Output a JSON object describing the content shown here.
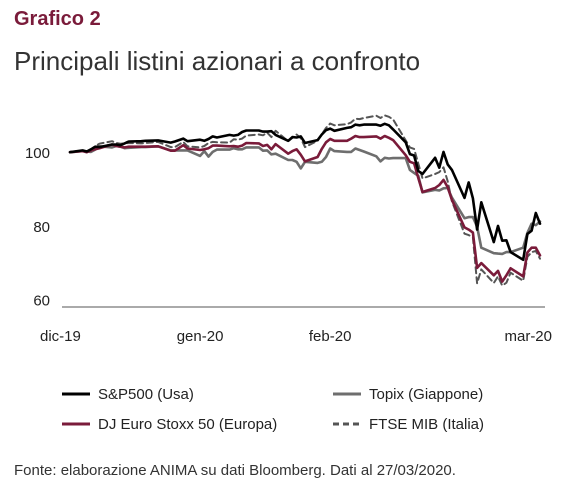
{
  "figure_label": "Grafico 2",
  "source_note": "Fonte: elaborazione ANIMA su dati Bloomberg. Dati al 27/03/2020.",
  "chart_data": {
    "type": "line",
    "title": "Principali listini azionari a confronto",
    "xlabel": "",
    "ylabel": "",
    "x": [
      "2019-12-06",
      "2019-12-09",
      "2019-12-10",
      "2019-12-11",
      "2019-12-12",
      "2019-12-13",
      "2019-12-16",
      "2019-12-17",
      "2019-12-18",
      "2019-12-19",
      "2019-12-20",
      "2019-12-23",
      "2019-12-24",
      "2019-12-27",
      "2019-12-30",
      "2019-12-31",
      "2020-01-02",
      "2020-01-03",
      "2020-01-06",
      "2020-01-07",
      "2020-01-08",
      "2020-01-09",
      "2020-01-10",
      "2020-01-13",
      "2020-01-14",
      "2020-01-15",
      "2020-01-16",
      "2020-01-17",
      "2020-01-20",
      "2020-01-21",
      "2020-01-22",
      "2020-01-23",
      "2020-01-24",
      "2020-01-27",
      "2020-01-28",
      "2020-01-29",
      "2020-01-30",
      "2020-01-31",
      "2020-02-03",
      "2020-02-04",
      "2020-02-05",
      "2020-02-06",
      "2020-02-07",
      "2020-02-10",
      "2020-02-11",
      "2020-02-12",
      "2020-02-13",
      "2020-02-14",
      "2020-02-17",
      "2020-02-18",
      "2020-02-19",
      "2020-02-20",
      "2020-02-21",
      "2020-02-24",
      "2020-02-25",
      "2020-02-26",
      "2020-02-27",
      "2020-02-28",
      "2020-03-02",
      "2020-03-03",
      "2020-03-04",
      "2020-03-05",
      "2020-03-06",
      "2020-03-09",
      "2020-03-10",
      "2020-03-11",
      "2020-03-12",
      "2020-03-13",
      "2020-03-16",
      "2020-03-17",
      "2020-03-18",
      "2020-03-19",
      "2020-03-20",
      "2020-03-23",
      "2020-03-24",
      "2020-03-25",
      "2020-03-26",
      "2020-03-27"
    ],
    "x_ticks": [
      "dic-19",
      "gen-20",
      "feb-20",
      "mar-20"
    ],
    "x_tick_dates": [
      "2019-12-06",
      "2020-01-06",
      "2020-02-06",
      "2020-03-25"
    ],
    "y_ticks": [
      60,
      80,
      100
    ],
    "ylim": [
      58,
      112
    ],
    "grid": false,
    "legend_position": "bottom",
    "series": [
      {
        "name": "S&P500 (Usa)",
        "color": "#000000",
        "dash": "solid",
        "values": [
          100,
          100.5,
          100.2,
          100.8,
          101.5,
          101.4,
          102.1,
          102.1,
          101.9,
          102.4,
          102.9,
          103.0,
          103.1,
          103.2,
          102.6,
          102.9,
          103.7,
          103.0,
          103.4,
          103.1,
          103.6,
          104.3,
          104.0,
          104.7,
          104.5,
          104.7,
          105.5,
          105.9,
          105.9,
          105.6,
          105.6,
          105.7,
          104.7,
          103.1,
          104.1,
          104.0,
          104.3,
          102.5,
          103.3,
          104.8,
          106.0,
          106.4,
          105.8,
          106.6,
          106.8,
          107.5,
          107.3,
          107.5,
          107.5,
          107.2,
          107.7,
          107.3,
          106.2,
          102.7,
          99.5,
          99.1,
          94.9,
          94.1,
          98.5,
          95.8,
          100.1,
          96.7,
          95.2,
          87.6,
          91.8,
          87.5,
          79.0,
          86.4,
          75.6,
          80.0,
          76.0,
          76.1,
          72.9,
          70.8,
          77.8,
          78.7,
          83.5,
          80.6
        ]
      },
      {
        "name": "Topix (Giappone)",
        "color": "#6e6e6e",
        "dash": "solid",
        "values": [
          100,
          100.3,
          100.2,
          100.1,
          100.7,
          101.6,
          101.3,
          101.7,
          101.5,
          101.1,
          101.2,
          101.4,
          101.4,
          101.6,
          100.5,
          100.5,
          100.5,
          100.5,
          99.0,
          100.3,
          98.8,
          100.1,
          100.7,
          100.7,
          101.1,
          100.8,
          100.8,
          101.3,
          101.3,
          100.4,
          100.5,
          99.4,
          99.6,
          97.9,
          97.9,
          97.4,
          95.6,
          97.4,
          97.1,
          97.4,
          98.7,
          101.0,
          100.3,
          100.1,
          100.1,
          101.0,
          100.6,
          100.2,
          98.9,
          97.5,
          98.5,
          98.3,
          98.4,
          98.4,
          95.2,
          94.4,
          93.6,
          89.1,
          89.8,
          89.6,
          90.2,
          90.3,
          87.7,
          82.1,
          82.4,
          82.4,
          79.8,
          74.1,
          72.6,
          72.5,
          72.4,
          72.9,
          72.9,
          74.1,
          78.1,
          80.6,
          80.2,
          81.2
        ]
      },
      {
        "name": "DJ Euro Stoxx 50 (Europa)",
        "color": "#7a1b3a",
        "dash": "solid",
        "values": [
          100,
          100.3,
          100.0,
          100.5,
          100.8,
          101.1,
          102.1,
          101.7,
          101.5,
          101.3,
          101.5,
          101.5,
          101.5,
          101.6,
          100.4,
          100.4,
          101.9,
          101.0,
          100.6,
          100.8,
          101.1,
          101.8,
          101.8,
          101.6,
          101.7,
          101.5,
          101.8,
          102.5,
          102.4,
          101.7,
          102.0,
          100.8,
          102.2,
          99.6,
          100.3,
          100.8,
          99.3,
          97.5,
          98.7,
          100.9,
          102.7,
          103.6,
          103.1,
          103.1,
          103.7,
          104.4,
          104.1,
          104.1,
          104.3,
          103.7,
          104.4,
          103.9,
          103.3,
          99.2,
          97.4,
          97.0,
          93.0,
          89.2,
          90.3,
          91.1,
          92.5,
          90.5,
          87.1,
          79.6,
          79.0,
          78.2,
          68.6,
          69.9,
          66.6,
          67.8,
          64.9,
          66.6,
          68.5,
          66.3,
          72.8,
          74.1,
          74.1,
          72.0
        ]
      },
      {
        "name": "FTSE MIB (Italia)",
        "color": "#555555",
        "dash": "dashed",
        "values": [
          100,
          100.4,
          100.2,
          100.8,
          101.6,
          102.3,
          103.0,
          102.5,
          102.3,
          102.4,
          102.5,
          102.4,
          102.5,
          102.8,
          101.4,
          101.4,
          102.8,
          101.6,
          101.3,
          101.7,
          102.5,
          102.8,
          102.7,
          102.6,
          103.5,
          103.4,
          103.7,
          104.5,
          104.8,
          104.6,
          105.3,
          104.1,
          105.8,
          103.0,
          103.9,
          104.8,
          103.8,
          101.4,
          103.1,
          104.9,
          106.6,
          107.8,
          107.3,
          107.6,
          108.1,
          109.1,
          109.0,
          109.3,
          109.9,
          109.3,
          110.0,
          109.6,
          108.9,
          103.2,
          101.3,
          100.9,
          96.9,
          92.9,
          94.1,
          94.6,
          95.9,
          92.1,
          86.7,
          77.9,
          77.5,
          76.9,
          64.4,
          68.2,
          64.5,
          66.3,
          63.8,
          64.6,
          67.3,
          65.1,
          71.6,
          72.9,
          73.2,
          71.1
        ]
      }
    ]
  }
}
